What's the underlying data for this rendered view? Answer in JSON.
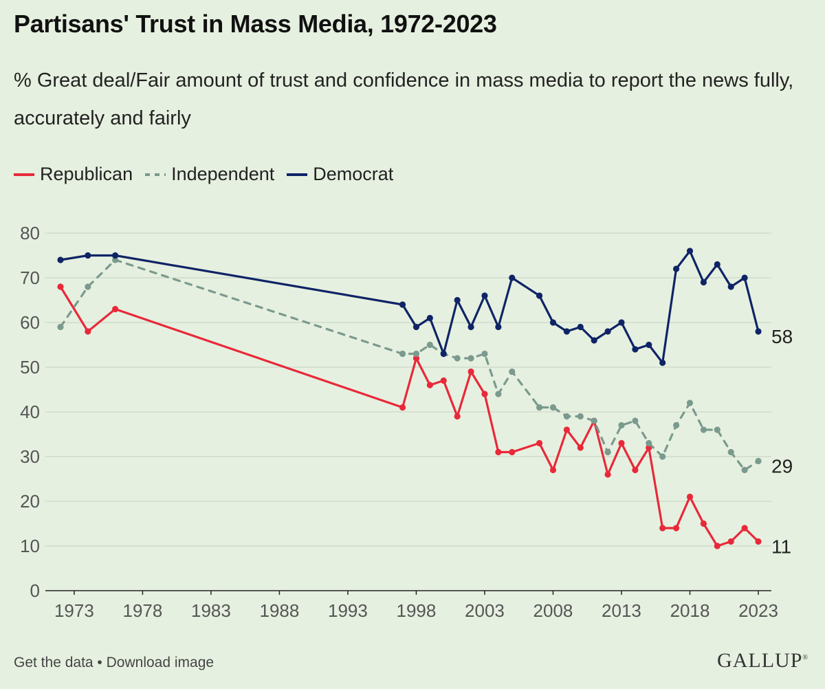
{
  "title": "Partisans' Trust in Mass Media, 1972-2023",
  "subtitle": "% Great deal/Fair amount of trust and confidence in mass media to report the news fully, accurately and fairly",
  "footer": {
    "get_data": "Get the data",
    "separator": " • ",
    "download": "Download image",
    "brand": "GALLUP",
    "brand_mark": "®"
  },
  "chart_data": {
    "type": "line",
    "xlim": [
      1972,
      2023
    ],
    "ylim": [
      0,
      80
    ],
    "x_ticks": [
      1973,
      1978,
      1983,
      1988,
      1993,
      1998,
      2003,
      2008,
      2013,
      2018,
      2023
    ],
    "y_ticks": [
      0,
      10,
      20,
      30,
      40,
      50,
      60,
      70,
      80
    ],
    "grid": "horizontal",
    "legend_position": "top-left",
    "series": [
      {
        "name": "Republican",
        "color": "#e8293a",
        "style": "solid",
        "end_label": "11",
        "points": [
          [
            1972,
            68
          ],
          [
            1974,
            58
          ],
          [
            1976,
            63
          ],
          [
            1997,
            41
          ],
          [
            1998,
            52
          ],
          [
            1999,
            46
          ],
          [
            2000,
            47
          ],
          [
            2001,
            39
          ],
          [
            2002,
            49
          ],
          [
            2003,
            44
          ],
          [
            2004,
            31
          ],
          [
            2005,
            31
          ],
          [
            2007,
            33
          ],
          [
            2008,
            27
          ],
          [
            2009,
            36
          ],
          [
            2010,
            32
          ],
          [
            2011,
            38
          ],
          [
            2012,
            26
          ],
          [
            2013,
            33
          ],
          [
            2014,
            27
          ],
          [
            2015,
            32
          ],
          [
            2016,
            14
          ],
          [
            2017,
            14
          ],
          [
            2018,
            21
          ],
          [
            2019,
            15
          ],
          [
            2020,
            10
          ],
          [
            2021,
            11
          ],
          [
            2022,
            14
          ],
          [
            2023,
            11
          ]
        ]
      },
      {
        "name": "Independent",
        "color": "#7a9a8e",
        "style": "dashed",
        "end_label": "29",
        "points": [
          [
            1972,
            59
          ],
          [
            1974,
            68
          ],
          [
            1976,
            74
          ],
          [
            1997,
            53
          ],
          [
            1998,
            53
          ],
          [
            1999,
            55
          ],
          [
            2000,
            53
          ],
          [
            2001,
            52
          ],
          [
            2002,
            52
          ],
          [
            2003,
            53
          ],
          [
            2004,
            44
          ],
          [
            2005,
            49
          ],
          [
            2007,
            41
          ],
          [
            2008,
            41
          ],
          [
            2009,
            39
          ],
          [
            2010,
            39
          ],
          [
            2011,
            38
          ],
          [
            2012,
            31
          ],
          [
            2013,
            37
          ],
          [
            2014,
            38
          ],
          [
            2015,
            33
          ],
          [
            2016,
            30
          ],
          [
            2017,
            37
          ],
          [
            2018,
            42
          ],
          [
            2019,
            36
          ],
          [
            2020,
            36
          ],
          [
            2021,
            31
          ],
          [
            2022,
            27
          ],
          [
            2023,
            29
          ]
        ]
      },
      {
        "name": "Democrat",
        "color": "#0f2466",
        "style": "solid",
        "end_label": "58",
        "points": [
          [
            1972,
            74
          ],
          [
            1974,
            75
          ],
          [
            1976,
            75
          ],
          [
            1997,
            64
          ],
          [
            1998,
            59
          ],
          [
            1999,
            61
          ],
          [
            2000,
            53
          ],
          [
            2001,
            65
          ],
          [
            2002,
            59
          ],
          [
            2003,
            66
          ],
          [
            2004,
            59
          ],
          [
            2005,
            70
          ],
          [
            2007,
            66
          ],
          [
            2008,
            60
          ],
          [
            2009,
            58
          ],
          [
            2010,
            59
          ],
          [
            2011,
            56
          ],
          [
            2012,
            58
          ],
          [
            2013,
            60
          ],
          [
            2014,
            54
          ],
          [
            2015,
            55
          ],
          [
            2016,
            51
          ],
          [
            2017,
            72
          ],
          [
            2018,
            76
          ],
          [
            2019,
            69
          ],
          [
            2020,
            73
          ],
          [
            2021,
            68
          ],
          [
            2022,
            70
          ],
          [
            2023,
            58
          ]
        ]
      }
    ]
  }
}
